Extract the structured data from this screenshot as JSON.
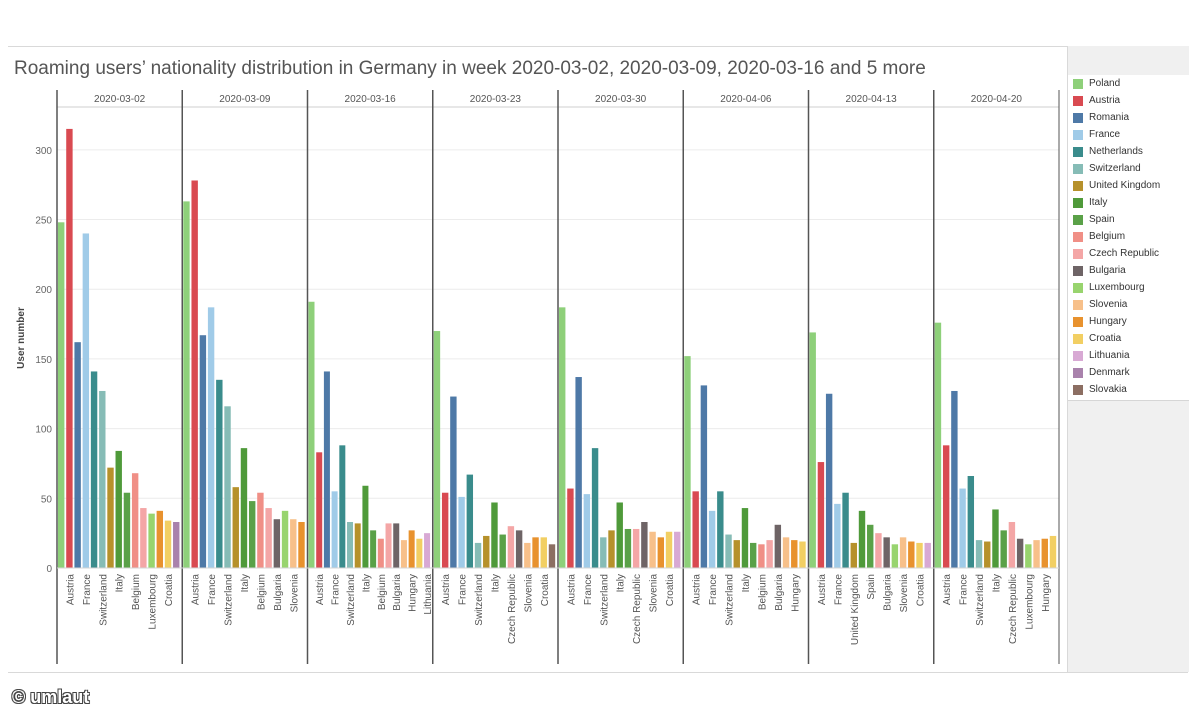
{
  "chart_data": {
    "type": "bar",
    "title": "Roaming users’ nationality distribution in Germany in week 2020-03-02, 2020-03-09, 2020-03-16 and 5 more",
    "ylabel": "User number",
    "ylim": [
      0,
      330
    ],
    "yticks": [
      0,
      50,
      100,
      150,
      200,
      250,
      300
    ],
    "grid": true,
    "legend_position": "right",
    "legend": [
      {
        "name": "Poland",
        "color": "#8ed07a"
      },
      {
        "name": "Austria",
        "color": "#d94a51"
      },
      {
        "name": "Romania",
        "color": "#4e79a7"
      },
      {
        "name": "France",
        "color": "#a0cbe8"
      },
      {
        "name": "Netherlands",
        "color": "#3a8c8c"
      },
      {
        "name": "Switzerland",
        "color": "#86bcb6"
      },
      {
        "name": "United Kingdom",
        "color": "#b6912b"
      },
      {
        "name": "Italy",
        "color": "#4f9a3a"
      },
      {
        "name": "Spain",
        "color": "#5aa148"
      },
      {
        "name": "Belgium",
        "color": "#f08f86"
      },
      {
        "name": "Czech Republic",
        "color": "#f4a6a6"
      },
      {
        "name": "Bulgaria",
        "color": "#6e6466"
      },
      {
        "name": "Luxembourg",
        "color": "#98d46e"
      },
      {
        "name": "Slovenia",
        "color": "#f7c08a"
      },
      {
        "name": "Hungary",
        "color": "#e8922e"
      },
      {
        "name": "Croatia",
        "color": "#f2cf63"
      },
      {
        "name": "Lithuania",
        "color": "#d8a9d4"
      },
      {
        "name": "Denmark",
        "color": "#a982ac"
      },
      {
        "name": "Slovakia",
        "color": "#8c6e62"
      }
    ],
    "panels": [
      {
        "week": "2020-03-02",
        "bars": [
          {
            "country": "Poland",
            "value": 248
          },
          {
            "country": "Austria",
            "value": 315
          },
          {
            "country": "Romania",
            "value": 162
          },
          {
            "country": "France",
            "value": 240
          },
          {
            "country": "Netherlands",
            "value": 141
          },
          {
            "country": "Switzerland",
            "value": 127
          },
          {
            "country": "United Kingdom",
            "value": 72
          },
          {
            "country": "Italy",
            "value": 84
          },
          {
            "country": "Spain",
            "value": 54
          },
          {
            "country": "Belgium",
            "value": 68
          },
          {
            "country": "Czech Republic",
            "value": 43
          },
          {
            "country": "Luxembourg",
            "value": 39
          },
          {
            "country": "Hungary",
            "value": 41
          },
          {
            "country": "Croatia",
            "value": 34
          },
          {
            "country": "Denmark",
            "value": 33
          }
        ],
        "tick_labels": [
          "Austria",
          "France",
          "Switzerland",
          "Italy",
          "Belgium",
          "Luxembourg",
          "Croatia"
        ]
      },
      {
        "week": "2020-03-09",
        "bars": [
          {
            "country": "Poland",
            "value": 263
          },
          {
            "country": "Austria",
            "value": 278
          },
          {
            "country": "Romania",
            "value": 167
          },
          {
            "country": "France",
            "value": 187
          },
          {
            "country": "Netherlands",
            "value": 135
          },
          {
            "country": "Switzerland",
            "value": 116
          },
          {
            "country": "United Kingdom",
            "value": 58
          },
          {
            "country": "Italy",
            "value": 86
          },
          {
            "country": "Spain",
            "value": 48
          },
          {
            "country": "Belgium",
            "value": 54
          },
          {
            "country": "Czech Republic",
            "value": 43
          },
          {
            "country": "Bulgaria",
            "value": 35
          },
          {
            "country": "Luxembourg",
            "value": 41
          },
          {
            "country": "Slovenia",
            "value": 35
          },
          {
            "country": "Hungary",
            "value": 33
          }
        ],
        "tick_labels": [
          "Austria",
          "France",
          "Switzerland",
          "Italy",
          "Belgium",
          "Bulgaria",
          "Slovenia"
        ]
      },
      {
        "week": "2020-03-16",
        "bars": [
          {
            "country": "Poland",
            "value": 191
          },
          {
            "country": "Austria",
            "value": 83
          },
          {
            "country": "Romania",
            "value": 141
          },
          {
            "country": "France",
            "value": 55
          },
          {
            "country": "Netherlands",
            "value": 88
          },
          {
            "country": "Switzerland",
            "value": 33
          },
          {
            "country": "United Kingdom",
            "value": 32
          },
          {
            "country": "Italy",
            "value": 59
          },
          {
            "country": "Spain",
            "value": 27
          },
          {
            "country": "Belgium",
            "value": 21
          },
          {
            "country": "Czech Republic",
            "value": 32
          },
          {
            "country": "Bulgaria",
            "value": 32
          },
          {
            "country": "Slovenia",
            "value": 20
          },
          {
            "country": "Hungary",
            "value": 27
          },
          {
            "country": "Croatia",
            "value": 21
          },
          {
            "country": "Lithuania",
            "value": 25
          }
        ],
        "tick_labels": [
          "Austria",
          "France",
          "Switzerland",
          "Italy",
          "Belgium",
          "Bulgaria",
          "Hungary",
          "Lithuania"
        ]
      },
      {
        "week": "2020-03-23",
        "bars": [
          {
            "country": "Poland",
            "value": 170
          },
          {
            "country": "Austria",
            "value": 54
          },
          {
            "country": "Romania",
            "value": 123
          },
          {
            "country": "France",
            "value": 51
          },
          {
            "country": "Netherlands",
            "value": 67
          },
          {
            "country": "Switzerland",
            "value": 18
          },
          {
            "country": "United Kingdom",
            "value": 23
          },
          {
            "country": "Italy",
            "value": 47
          },
          {
            "country": "Spain",
            "value": 24
          },
          {
            "country": "Czech Republic",
            "value": 30
          },
          {
            "country": "Bulgaria",
            "value": 27
          },
          {
            "country": "Slovenia",
            "value": 18
          },
          {
            "country": "Hungary",
            "value": 22
          },
          {
            "country": "Croatia",
            "value": 22
          },
          {
            "country": "Slovakia",
            "value": 17
          }
        ],
        "tick_labels": [
          "Austria",
          "France",
          "Switzerland",
          "Italy",
          "Czech Republic",
          "Slovenia",
          "Croatia"
        ]
      },
      {
        "week": "2020-03-30",
        "bars": [
          {
            "country": "Poland",
            "value": 187
          },
          {
            "country": "Austria",
            "value": 57
          },
          {
            "country": "Romania",
            "value": 137
          },
          {
            "country": "France",
            "value": 53
          },
          {
            "country": "Netherlands",
            "value": 86
          },
          {
            "country": "Switzerland",
            "value": 22
          },
          {
            "country": "United Kingdom",
            "value": 27
          },
          {
            "country": "Italy",
            "value": 47
          },
          {
            "country": "Spain",
            "value": 28
          },
          {
            "country": "Czech Republic",
            "value": 28
          },
          {
            "country": "Bulgaria",
            "value": 33
          },
          {
            "country": "Slovenia",
            "value": 26
          },
          {
            "country": "Hungary",
            "value": 22
          },
          {
            "country": "Croatia",
            "value": 26
          },
          {
            "country": "Lithuania",
            "value": 26
          }
        ],
        "tick_labels": [
          "Austria",
          "France",
          "Switzerland",
          "Italy",
          "Czech Republic",
          "Slovenia",
          "Croatia"
        ]
      },
      {
        "week": "2020-04-06",
        "bars": [
          {
            "country": "Poland",
            "value": 152
          },
          {
            "country": "Austria",
            "value": 55
          },
          {
            "country": "Romania",
            "value": 131
          },
          {
            "country": "France",
            "value": 41
          },
          {
            "country": "Netherlands",
            "value": 55
          },
          {
            "country": "Switzerland",
            "value": 24
          },
          {
            "country": "United Kingdom",
            "value": 20
          },
          {
            "country": "Italy",
            "value": 43
          },
          {
            "country": "Spain",
            "value": 18
          },
          {
            "country": "Belgium",
            "value": 17
          },
          {
            "country": "Czech Republic",
            "value": 20
          },
          {
            "country": "Bulgaria",
            "value": 31
          },
          {
            "country": "Slovenia",
            "value": 22
          },
          {
            "country": "Hungary",
            "value": 20
          },
          {
            "country": "Croatia",
            "value": 19
          }
        ],
        "tick_labels": [
          "Austria",
          "France",
          "Switzerland",
          "Italy",
          "Belgium",
          "Bulgaria",
          "Hungary"
        ]
      },
      {
        "week": "2020-04-13",
        "bars": [
          {
            "country": "Poland",
            "value": 169
          },
          {
            "country": "Austria",
            "value": 76
          },
          {
            "country": "Romania",
            "value": 125
          },
          {
            "country": "France",
            "value": 46
          },
          {
            "country": "Netherlands",
            "value": 54
          },
          {
            "country": "United Kingdom",
            "value": 18
          },
          {
            "country": "Italy",
            "value": 41
          },
          {
            "country": "Spain",
            "value": 31
          },
          {
            "country": "Czech Republic",
            "value": 25
          },
          {
            "country": "Bulgaria",
            "value": 22
          },
          {
            "country": "Luxembourg",
            "value": 17
          },
          {
            "country": "Slovenia",
            "value": 22
          },
          {
            "country": "Hungary",
            "value": 19
          },
          {
            "country": "Croatia",
            "value": 18
          },
          {
            "country": "Lithuania",
            "value": 18
          }
        ],
        "tick_labels": [
          "Austria",
          "France",
          "United Kingdom",
          "Spain",
          "Bulgaria",
          "Slovenia",
          "Croatia"
        ]
      },
      {
        "week": "2020-04-20",
        "bars": [
          {
            "country": "Poland",
            "value": 176
          },
          {
            "country": "Austria",
            "value": 88
          },
          {
            "country": "Romania",
            "value": 127
          },
          {
            "country": "France",
            "value": 57
          },
          {
            "country": "Netherlands",
            "value": 66
          },
          {
            "country": "Switzerland",
            "value": 20
          },
          {
            "country": "United Kingdom",
            "value": 19
          },
          {
            "country": "Italy",
            "value": 42
          },
          {
            "country": "Spain",
            "value": 27
          },
          {
            "country": "Czech Republic",
            "value": 33
          },
          {
            "country": "Bulgaria",
            "value": 21
          },
          {
            "country": "Luxembourg",
            "value": 17
          },
          {
            "country": "Slovenia",
            "value": 20
          },
          {
            "country": "Hungary",
            "value": 21
          },
          {
            "country": "Croatia",
            "value": 23
          }
        ],
        "tick_labels": [
          "Austria",
          "France",
          "Switzerland",
          "Italy",
          "Czech Republic",
          "Luxembourg",
          "Hungary"
        ]
      }
    ]
  },
  "copyright": "© umlaut"
}
